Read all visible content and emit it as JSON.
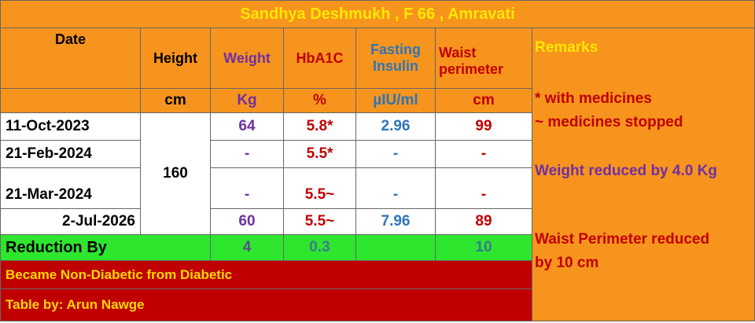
{
  "title": "Sandhya Deshmukh , F 66 , Amravati",
  "table": {
    "headers": [
      "Date",
      "Height",
      "Weight",
      "HbA1C",
      "Fasting Insulin",
      "Waist perimeter"
    ],
    "units": [
      "cm",
      "Kg",
      "%",
      "µIU/ml",
      "cm"
    ],
    "height": "160",
    "rows": [
      [
        "11-Oct-2023",
        "64",
        "5.8*",
        "2.96",
        "99"
      ],
      [
        "21-Feb-2024",
        "-",
        "5.5*",
        "-",
        "-"
      ],
      [
        "21-Mar-2024",
        "-",
        "5.5~",
        "-",
        "-"
      ],
      [
        "2-Jul-2026",
        "60",
        "5.5~",
        "7.96",
        "89"
      ]
    ],
    "reduction": {
      "label": "Reduction By",
      "weight": "4",
      "hba1c": "0.3",
      "waist": "10"
    }
  },
  "notes": [
    "Became Non-Diabetic from Diabetic",
    "Table by: Arun Nawge"
  ],
  "remarks": {
    "title": "Remarks",
    "lines": [
      "* with medicines",
      "~ medicines stopped",
      "Weight reduced by 4.0 Kg",
      "Waist Perimeter reduced by 10 cm"
    ]
  }
}
